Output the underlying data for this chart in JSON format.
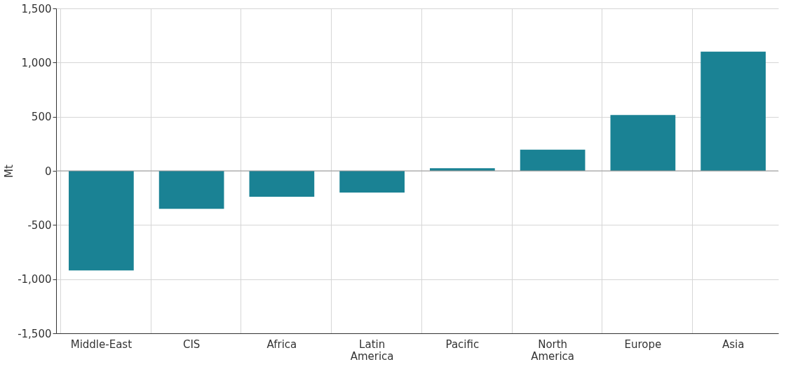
{
  "chart_data": {
    "type": "bar",
    "ylabel": "Mt",
    "categories": [
      "Middle-East",
      "CIS",
      "Africa",
      "Latin America",
      "Pacific",
      "North America",
      "Europe",
      "Asia"
    ],
    "values": [
      -920,
      -350,
      -240,
      -200,
      25,
      195,
      515,
      1100
    ],
    "color": "#1a8294",
    "ylim": [
      -1500,
      1500
    ],
    "yticks": [
      {
        "value": -1500,
        "label": "-1,500"
      },
      {
        "value": -1000,
        "label": "-1,000"
      },
      -500,
      0,
      500,
      {
        "value": 1000,
        "label": "1,000"
      },
      {
        "value": 1500,
        "label": "1,500"
      }
    ],
    "grid": true,
    "ref_lines": [
      {
        "axis": "y",
        "value": 0,
        "color": "#999999"
      }
    ]
  }
}
